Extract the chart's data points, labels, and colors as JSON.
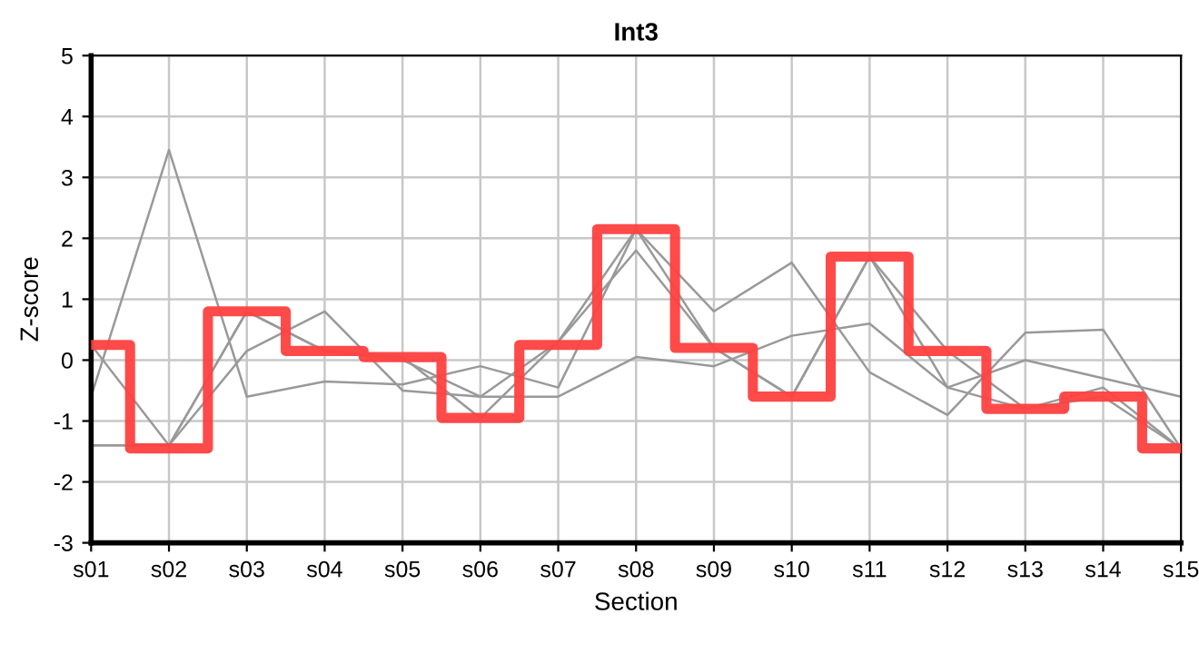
{
  "chart_data": {
    "type": "line",
    "title": "Int3",
    "xlabel": "Section",
    "ylabel": "Z-score",
    "categories": [
      "s01",
      "s02",
      "s03",
      "s04",
      "s05",
      "s06",
      "s07",
      "s08",
      "s09",
      "s10",
      "s11",
      "s12",
      "s13",
      "s14",
      "s15"
    ],
    "series": [
      {
        "color": "#999999",
        "values": [
          -0.6,
          3.45,
          -0.6,
          -0.35,
          -0.4,
          -0.1,
          -0.45,
          2.15,
          0.8,
          1.6,
          -0.2,
          -0.9,
          0.45,
          0.5,
          -1.45
        ]
      },
      {
        "color": "#999999",
        "values": [
          0.25,
          -1.4,
          0.8,
          0.15,
          0.05,
          -0.95,
          0.3,
          2.15,
          0.2,
          -0.6,
          1.7,
          0.15,
          -0.8,
          -0.6,
          -1.45
        ]
      },
      {
        "color": "#999999",
        "values": [
          -1.4,
          -1.4,
          0.15,
          0.8,
          -0.5,
          -0.6,
          -0.6,
          0.05,
          -0.1,
          0.4,
          0.6,
          -0.45,
          0.0,
          -0.3,
          -0.6
        ]
      },
      {
        "color": "#999999",
        "values": [
          -1.4,
          -1.4,
          0.8,
          0.15,
          0.0,
          -0.6,
          0.3,
          1.8,
          0.2,
          -0.6,
          1.7,
          -0.45,
          -0.8,
          -0.45,
          -1.45
        ]
      },
      {
        "type": "step",
        "color": "#ff4040",
        "values": [
          0.25,
          -1.45,
          0.8,
          0.15,
          0.05,
          -0.95,
          0.25,
          2.15,
          0.2,
          -0.6,
          1.7,
          0.15,
          -0.8,
          -0.6,
          -1.45
        ]
      }
    ],
    "ylim": [
      -3,
      5
    ],
    "yticks": [
      -3,
      -2,
      -1,
      0,
      1,
      2,
      3,
      4,
      5
    ],
    "grid": true,
    "marker": "none",
    "line_style": "solid"
  }
}
